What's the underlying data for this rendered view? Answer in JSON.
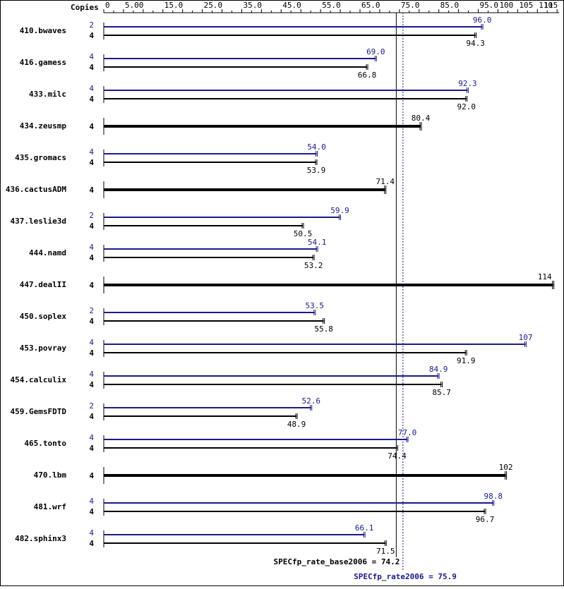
{
  "chart_data": {
    "type": "bar",
    "copies_label": "Copies",
    "colors": {
      "base": "#000000",
      "peak": "#1a1a8c",
      "frame": "#000000"
    },
    "axis": {
      "xlim": [
        0,
        115.5
      ],
      "ticks": [
        0,
        5,
        10,
        15,
        20,
        25,
        30,
        35,
        40,
        45,
        50,
        55,
        60,
        65,
        70,
        75,
        80,
        85,
        90,
        95,
        100,
        105,
        110,
        115
      ],
      "tick_labels": [
        "0",
        "5.00",
        "15.0",
        "25.0",
        "35.0",
        "45.0",
        "55.0",
        "65.0",
        "75.0",
        "85.0",
        "95.0",
        "100",
        "105",
        "110",
        "115"
      ],
      "tick_label_values": [
        0,
        5,
        15,
        25,
        35,
        45,
        55,
        65,
        75,
        85,
        95,
        100,
        105,
        110,
        115
      ]
    },
    "reference_lines": {
      "base": {
        "label": "SPECfp_rate_base2006 = 74.2",
        "value": 74.2
      },
      "peak": {
        "label": "SPECfp_rate2006 = 75.9",
        "value": 75.9
      }
    },
    "benchmarks": [
      {
        "name": "410.bwaves",
        "peak_copies": "2",
        "peak": 96.0,
        "peak_label": "96.0",
        "base_copies": "4",
        "base": 94.3,
        "base_label": "94.3"
      },
      {
        "name": "416.gamess",
        "peak_copies": "4",
        "peak": 69.0,
        "peak_label": "69.0",
        "base_copies": "4",
        "base": 66.8,
        "base_label": "66.8"
      },
      {
        "name": "433.milc",
        "peak_copies": "4",
        "peak": 92.3,
        "peak_label": "92.3",
        "base_copies": "4",
        "base": 92.0,
        "base_label": "92.0"
      },
      {
        "name": "434.zeusmp",
        "base_copies": "4",
        "base": 80.4,
        "base_label": "80.4"
      },
      {
        "name": "435.gromacs",
        "peak_copies": "4",
        "peak": 54.0,
        "peak_label": "54.0",
        "base_copies": "4",
        "base": 53.9,
        "base_label": "53.9"
      },
      {
        "name": "436.cactusADM",
        "base_copies": "4",
        "base": 71.4,
        "base_label": "71.4"
      },
      {
        "name": "437.leslie3d",
        "peak_copies": "2",
        "peak": 59.9,
        "peak_label": "59.9",
        "base_copies": "4",
        "base": 50.5,
        "base_label": "50.5"
      },
      {
        "name": "444.namd",
        "peak_copies": "4",
        "peak": 54.1,
        "peak_label": "54.1",
        "base_copies": "4",
        "base": 53.2,
        "base_label": "53.2"
      },
      {
        "name": "447.dealII",
        "base_copies": "4",
        "base": 114,
        "base_label": "114"
      },
      {
        "name": "450.soplex",
        "peak_copies": "2",
        "peak": 53.5,
        "peak_label": "53.5",
        "base_copies": "4",
        "base": 55.8,
        "base_label": "55.8"
      },
      {
        "name": "453.povray",
        "peak_copies": "4",
        "peak": 107,
        "peak_label": "107",
        "base_copies": "4",
        "base": 91.9,
        "base_label": "91.9"
      },
      {
        "name": "454.calculix",
        "peak_copies": "4",
        "peak": 84.9,
        "peak_label": "84.9",
        "base_copies": "4",
        "base": 85.7,
        "base_label": "85.7"
      },
      {
        "name": "459.GemsFDTD",
        "peak_copies": "2",
        "peak": 52.6,
        "peak_label": "52.6",
        "base_copies": "4",
        "base": 48.9,
        "base_label": "48.9"
      },
      {
        "name": "465.tonto",
        "peak_copies": "4",
        "peak": 77.0,
        "peak_label": "77.0",
        "base_copies": "4",
        "base": 74.4,
        "base_label": "74.4"
      },
      {
        "name": "470.lbm",
        "base_copies": "4",
        "base": 102,
        "base_label": "102"
      },
      {
        "name": "481.wrf",
        "peak_copies": "4",
        "peak": 98.8,
        "peak_label": "98.8",
        "base_copies": "4",
        "base": 96.7,
        "base_label": "96.7"
      },
      {
        "name": "482.sphinx3",
        "peak_copies": "4",
        "peak": 66.1,
        "peak_label": "66.1",
        "base_copies": "4",
        "base": 71.5,
        "base_label": "71.5"
      }
    ]
  }
}
